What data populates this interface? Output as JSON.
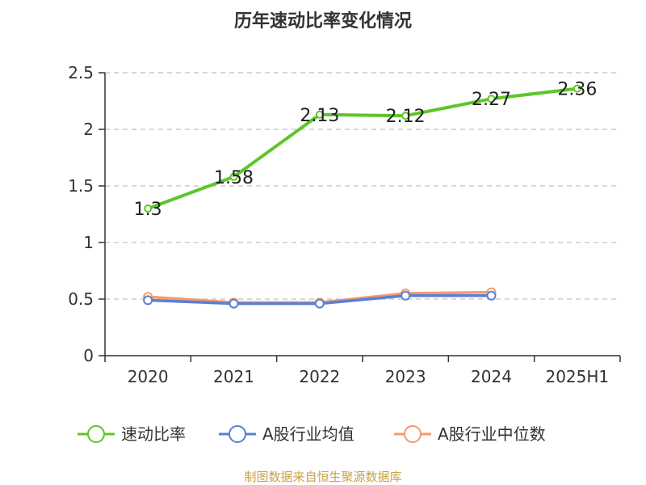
{
  "chart_data": {
    "type": "line",
    "title": "历年速动比率变化情况",
    "categories": [
      "2020",
      "2021",
      "2022",
      "2023",
      "2024",
      "2025H1"
    ],
    "ylim": [
      0,
      2.5
    ],
    "yticks": [
      "0",
      "0.5",
      "1",
      "1.5",
      "2",
      "2.5"
    ],
    "grid": true,
    "legend_position": "bottom",
    "series": [
      {
        "name": "速动比率",
        "color": "#5ec52a",
        "values": [
          1.3,
          1.58,
          2.13,
          2.12,
          2.27,
          2.36
        ],
        "labels": [
          "1.3",
          "1.58",
          "2.13",
          "2.12",
          "2.27",
          "2.36"
        ]
      },
      {
        "name": "A股行业均值",
        "color": "#5b7fd6",
        "values": [
          0.49,
          0.46,
          0.46,
          0.53,
          0.53,
          null
        ]
      },
      {
        "name": "A股行业中位数",
        "color": "#f59a6b",
        "values": [
          0.52,
          0.47,
          0.47,
          0.55,
          0.56,
          null
        ]
      }
    ]
  },
  "source_note": "制图数据来自恒生聚源数据库"
}
